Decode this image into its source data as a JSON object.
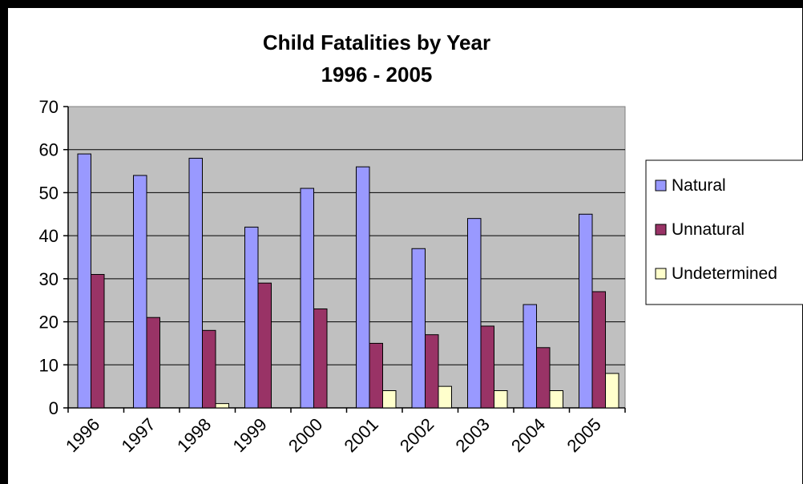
{
  "chart_data": {
    "type": "bar",
    "title": "Child Fatalities by Year",
    "subtitle": "1996 - 2005",
    "xlabel": "",
    "ylabel": "",
    "categories": [
      "1996",
      "1997",
      "1998",
      "1999",
      "2000",
      "2001",
      "2002",
      "2003",
      "2004",
      "2005"
    ],
    "series": [
      {
        "name": "Natural",
        "color": "#9999ff",
        "values": [
          59,
          54,
          58,
          42,
          51,
          56,
          37,
          44,
          24,
          45
        ]
      },
      {
        "name": "Unnatural",
        "color": "#993366",
        "values": [
          31,
          21,
          18,
          29,
          23,
          15,
          17,
          19,
          14,
          27
        ]
      },
      {
        "name": "Undetermined",
        "color": "#ffffcc",
        "values": [
          0,
          0,
          1,
          0,
          0,
          4,
          5,
          4,
          4,
          8
        ]
      }
    ],
    "ylim": [
      0,
      70
    ],
    "yticks": [
      0,
      10,
      20,
      30,
      40,
      50,
      60,
      70
    ],
    "grid": true,
    "plot_background": "#c0c0c0",
    "legend_position": "right"
  }
}
